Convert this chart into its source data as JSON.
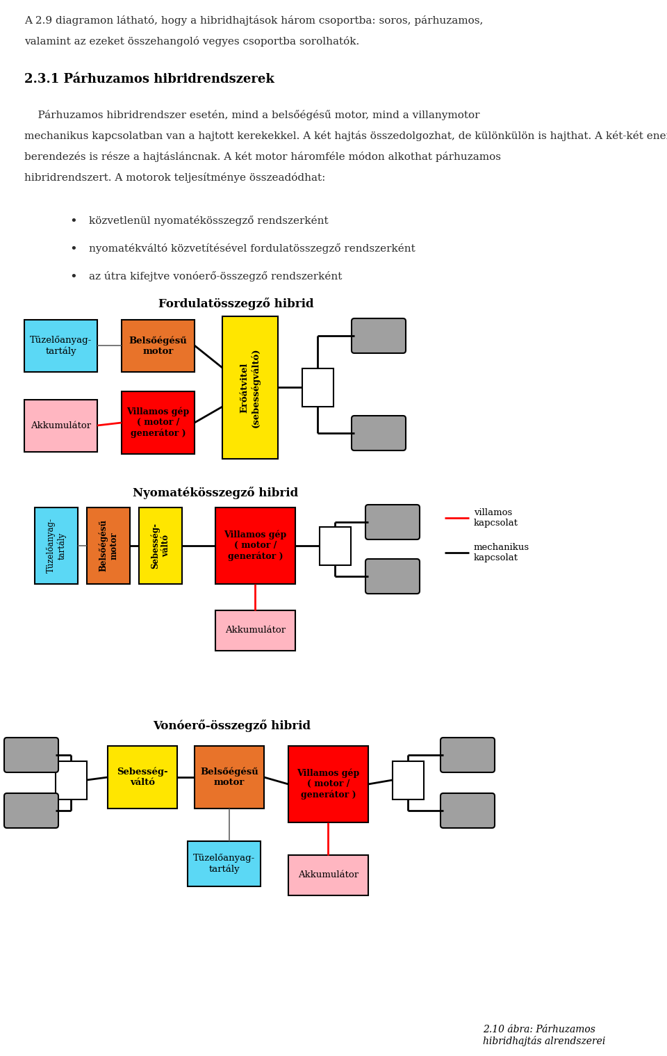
{
  "bg_color": "#ffffff",
  "text_color": "#000000",
  "page_width": 9.6,
  "page_height": 15.19,
  "intro_text_line1": "A 2.9 diagramon látható, hogy a hibridhajtások három csoportba: soros, párhuzamos,",
  "intro_text_line2": "valamint az ezeket összehangoló vegyes csoportba sorolhatók.",
  "section_title": "2.3.1 Párhuzamos hibridrendszerek",
  "body_lines": [
    "    Párhuzamos hibridrendszer esetén, mind a belsőégésű motor, mind a villanymotor",
    "mechanikus kapcsolatban van a hajtott kerekekkel. A két hajtás összedolgozhat, de különkülön is hajthat. A két-két energia-átalakítón és energiatárolón kívül valamilyen erőátviteli",
    "berendezés is része a hajtásláncnak. A két motor háromféle módon alkothat párhuzamos",
    "hibridrendszert. A motorok teljesítménye összeadódhat:"
  ],
  "bullet_points": [
    "közvetlenül nyomatékösszegző rendszerként",
    "nyomatékváltó közvetítésével fordulatösszegző rendszerként",
    "az útra kifejtve vonóerő-összegző rendszerként"
  ],
  "diagram1_title": "Fordulatösszegző hibrid",
  "diagram2_title": "Nyomatékösszegző hibrid",
  "diagram3_title": "Vonóerő-összegző hibrid",
  "caption": "2.10 ábra: Párhuzamos\nhibridhajtás alrendszerei",
  "colors": {
    "cyan": "#5BD8F5",
    "orange": "#E8732A",
    "yellow": "#FFE600",
    "red": "#FF0000",
    "pink": "#FFB6C1",
    "white": "#FFFFFF",
    "gray": "#A0A0A0",
    "black": "#000000",
    "darkgray": "#606060"
  },
  "legend_red_label": "villamos\nkapcsolat",
  "legend_black_label": "mechanikus\nkapcsolat"
}
